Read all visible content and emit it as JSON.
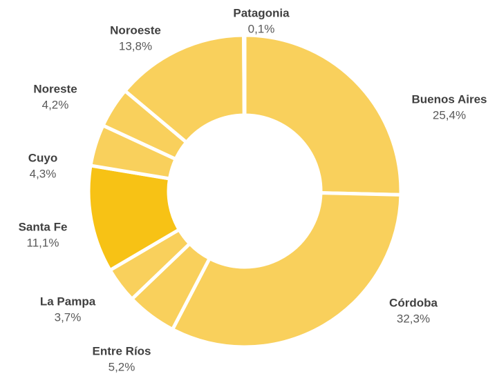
{
  "chart_data": {
    "type": "donut",
    "categories": [
      "Buenos Aires",
      "Córdoba",
      "Entre Ríos",
      "La Pampa",
      "Santa Fe",
      "Cuyo",
      "Noreste",
      "Noroeste",
      "Patagonia"
    ],
    "values": [
      25.4,
      32.3,
      5.2,
      3.7,
      11.1,
      4.3,
      4.2,
      13.8,
      0.1
    ],
    "value_labels": [
      "25,4%",
      "32,3%",
      "5,2%",
      "3,7%",
      "11,1%",
      "4,3%",
      "4,2%",
      "13,8%",
      "0,1%"
    ],
    "colors": [
      "#f9d05c",
      "#f9d05c",
      "#f9d05c",
      "#f9d05c",
      "#f7c215",
      "#f9d05c",
      "#f9d05c",
      "#f9d05c",
      "#f9d05c"
    ]
  }
}
